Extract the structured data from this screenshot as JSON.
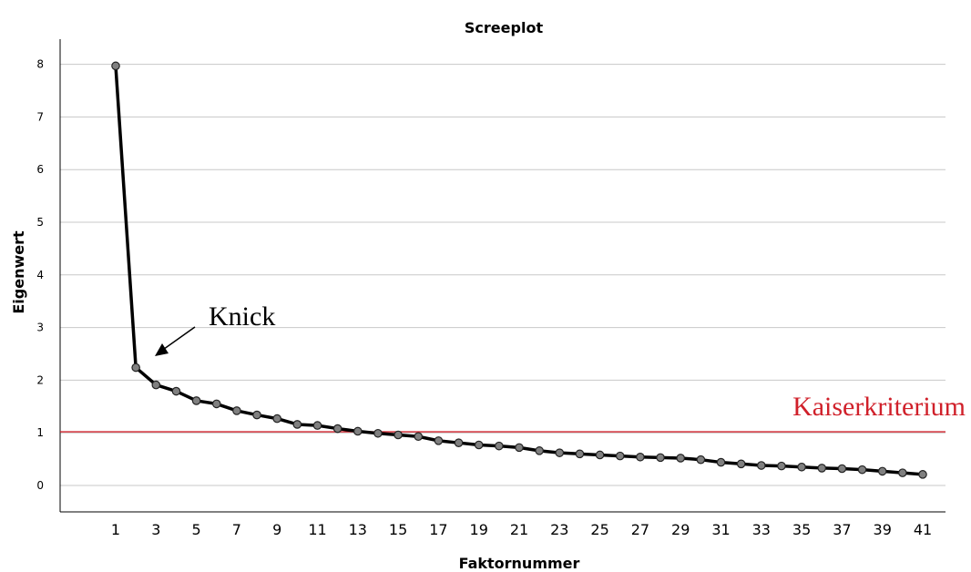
{
  "chart_data": {
    "type": "line",
    "title": "Screeplot",
    "xlabel": "Faktornummer",
    "ylabel": "Eigenwert",
    "x": [
      1,
      2,
      3,
      4,
      5,
      6,
      7,
      8,
      9,
      10,
      11,
      12,
      13,
      14,
      15,
      16,
      17,
      18,
      19,
      20,
      21,
      22,
      23,
      24,
      25,
      26,
      27,
      28,
      29,
      30,
      31,
      32,
      33,
      34,
      35,
      36,
      37,
      38,
      39,
      40,
      41
    ],
    "values": [
      7.97,
      2.24,
      1.91,
      1.79,
      1.61,
      1.55,
      1.42,
      1.34,
      1.27,
      1.16,
      1.14,
      1.08,
      1.03,
      0.99,
      0.96,
      0.93,
      0.85,
      0.81,
      0.77,
      0.75,
      0.72,
      0.66,
      0.62,
      0.6,
      0.58,
      0.56,
      0.54,
      0.53,
      0.52,
      0.49,
      0.44,
      0.41,
      0.38,
      0.37,
      0.35,
      0.33,
      0.32,
      0.3,
      0.27,
      0.24,
      0.21
    ],
    "xticks": [
      "1",
      "3",
      "5",
      "7",
      "9",
      "11",
      "13",
      "15",
      "17",
      "19",
      "21",
      "23",
      "25",
      "27",
      "29",
      "31",
      "33",
      "35",
      "37",
      "39",
      "41"
    ],
    "yticks": [
      "0",
      "1",
      "2",
      "3",
      "4",
      "5",
      "6",
      "7",
      "8"
    ],
    "ylim": [
      -0.5,
      8.5
    ],
    "xlim": [
      0,
      42
    ],
    "grid": "horizontal",
    "reference_line": {
      "y": 1.02,
      "label": "Kaiserkriterium",
      "color": "#d0202a"
    },
    "annotation": {
      "text": "Knick",
      "points_to_x": 2
    },
    "line_color": "#000000",
    "marker_color": "#808080"
  }
}
